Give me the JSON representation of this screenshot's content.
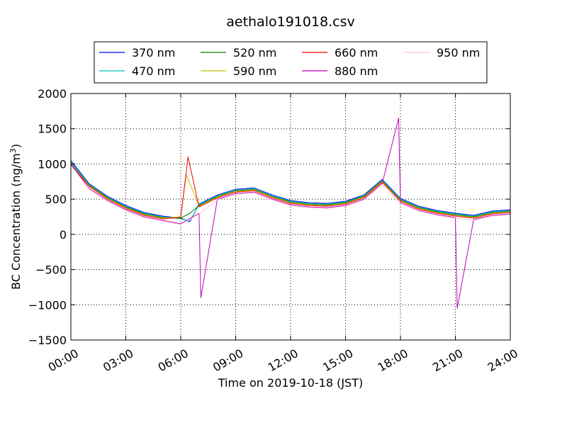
{
  "chart_data": {
    "type": "line",
    "title": "aethalo191018.csv",
    "xlabel": "Time on 2019-10-18 (JST)",
    "ylabel": "BC Concentration (ng/m³)",
    "ylabel_main": "BC Concentration (ng/m",
    "ylabel_sup": "3",
    "ylabel_end": ")",
    "xlim": [
      "00:00",
      "24:00"
    ],
    "ylim": [
      -1500,
      2000
    ],
    "grid": true,
    "legend_position": "top-center",
    "x_ticks": [
      "00:00",
      "03:00",
      "06:00",
      "09:00",
      "12:00",
      "15:00",
      "18:00",
      "21:00",
      "24:00"
    ],
    "y_ticks": [
      -1500,
      -1000,
      -500,
      0,
      500,
      1000,
      1500,
      2000
    ],
    "y_tick_labels": [
      "−1500",
      "−1000",
      "−500",
      "0",
      "500",
      "1000",
      "1500",
      "2000"
    ],
    "series": [
      {
        "name": "370 nm",
        "color": "#0000ff",
        "values": [
          [
            0,
            1050
          ],
          [
            1,
            720
          ],
          [
            2,
            540
          ],
          [
            3,
            410
          ],
          [
            4,
            310
          ],
          [
            5,
            260
          ],
          [
            6,
            230
          ],
          [
            6.5,
            180
          ],
          [
            7,
            430
          ],
          [
            8,
            560
          ],
          [
            9,
            640
          ],
          [
            10,
            660
          ],
          [
            11,
            560
          ],
          [
            12,
            480
          ],
          [
            13,
            450
          ],
          [
            14,
            440
          ],
          [
            15,
            470
          ],
          [
            16,
            560
          ],
          [
            17,
            780
          ],
          [
            18,
            510
          ],
          [
            19,
            400
          ],
          [
            20,
            340
          ],
          [
            21,
            300
          ],
          [
            22,
            270
          ],
          [
            23,
            330
          ],
          [
            24,
            350
          ]
        ]
      },
      {
        "name": "470 nm",
        "color": "#00bfbf",
        "values": [
          [
            0,
            1030
          ],
          [
            1,
            710
          ],
          [
            2,
            530
          ],
          [
            3,
            400
          ],
          [
            4,
            300
          ],
          [
            5,
            250
          ],
          [
            6,
            220
          ],
          [
            6.5,
            190
          ],
          [
            7,
            420
          ],
          [
            8,
            550
          ],
          [
            9,
            630
          ],
          [
            10,
            650
          ],
          [
            11,
            550
          ],
          [
            12,
            470
          ],
          [
            13,
            440
          ],
          [
            14,
            430
          ],
          [
            15,
            460
          ],
          [
            16,
            550
          ],
          [
            17,
            770
          ],
          [
            18,
            500
          ],
          [
            19,
            390
          ],
          [
            20,
            330
          ],
          [
            21,
            290
          ],
          [
            22,
            260
          ],
          [
            23,
            320
          ],
          [
            24,
            340
          ]
        ]
      },
      {
        "name": "520 nm",
        "color": "#008000",
        "values": [
          [
            0,
            1010
          ],
          [
            1,
            700
          ],
          [
            2,
            520
          ],
          [
            3,
            390
          ],
          [
            4,
            290
          ],
          [
            5,
            240
          ],
          [
            6,
            230
          ],
          [
            6.5,
            300
          ],
          [
            7,
            410
          ],
          [
            8,
            540
          ],
          [
            9,
            620
          ],
          [
            10,
            640
          ],
          [
            11,
            540
          ],
          [
            12,
            460
          ],
          [
            13,
            430
          ],
          [
            14,
            420
          ],
          [
            15,
            450
          ],
          [
            16,
            540
          ],
          [
            17,
            760
          ],
          [
            18,
            490
          ],
          [
            19,
            380
          ],
          [
            20,
            320
          ],
          [
            21,
            280
          ],
          [
            22,
            250
          ],
          [
            23,
            310
          ],
          [
            24,
            330
          ]
        ]
      },
      {
        "name": "590 nm",
        "color": "#bfbf00",
        "values": [
          [
            0,
            1000
          ],
          [
            1,
            690
          ],
          [
            2,
            510
          ],
          [
            3,
            380
          ],
          [
            4,
            280
          ],
          [
            5,
            230
          ],
          [
            6,
            250
          ],
          [
            6.3,
            850
          ],
          [
            7,
            400
          ],
          [
            8,
            530
          ],
          [
            9,
            610
          ],
          [
            10,
            630
          ],
          [
            11,
            530
          ],
          [
            12,
            450
          ],
          [
            13,
            420
          ],
          [
            14,
            410
          ],
          [
            15,
            440
          ],
          [
            16,
            530
          ],
          [
            17,
            750
          ],
          [
            18,
            480
          ],
          [
            19,
            370
          ],
          [
            20,
            310
          ],
          [
            21,
            270
          ],
          [
            22,
            240
          ],
          [
            23,
            300
          ],
          [
            24,
            320
          ]
        ]
      },
      {
        "name": "660 nm",
        "color": "#ff0000",
        "values": [
          [
            0,
            990
          ],
          [
            1,
            680
          ],
          [
            2,
            500
          ],
          [
            3,
            370
          ],
          [
            4,
            270
          ],
          [
            5,
            220
          ],
          [
            6,
            240
          ],
          [
            6.4,
            1100
          ],
          [
            7,
            390
          ],
          [
            8,
            520
          ],
          [
            9,
            600
          ],
          [
            10,
            620
          ],
          [
            11,
            520
          ],
          [
            12,
            440
          ],
          [
            13,
            410
          ],
          [
            14,
            400
          ],
          [
            15,
            430
          ],
          [
            16,
            520
          ],
          [
            17,
            740
          ],
          [
            18,
            470
          ],
          [
            19,
            360
          ],
          [
            20,
            300
          ],
          [
            21,
            260
          ],
          [
            22,
            230
          ],
          [
            23,
            290
          ],
          [
            24,
            310
          ]
        ]
      },
      {
        "name": "880 nm",
        "color": "#bf00bf",
        "values": [
          [
            0,
            1000
          ],
          [
            1,
            650
          ],
          [
            2,
            480
          ],
          [
            3,
            350
          ],
          [
            4,
            250
          ],
          [
            5,
            200
          ],
          [
            6,
            150
          ],
          [
            7,
            300
          ],
          [
            7.1,
            -900
          ],
          [
            8,
            500
          ],
          [
            9,
            580
          ],
          [
            10,
            600
          ],
          [
            11,
            500
          ],
          [
            12,
            420
          ],
          [
            13,
            390
          ],
          [
            14,
            380
          ],
          [
            15,
            410
          ],
          [
            16,
            500
          ],
          [
            17,
            720
          ],
          [
            17.9,
            1650
          ],
          [
            18,
            450
          ],
          [
            19,
            340
          ],
          [
            20,
            280
          ],
          [
            21,
            240
          ],
          [
            21.1,
            -1050
          ],
          [
            22,
            210
          ],
          [
            23,
            270
          ],
          [
            24,
            290
          ]
        ]
      },
      {
        "name": "950 nm",
        "color": "#ffc0cb",
        "values": [
          [
            0,
            980
          ],
          [
            1,
            640
          ],
          [
            2,
            470
          ],
          [
            3,
            340
          ],
          [
            4,
            240
          ],
          [
            5,
            190
          ],
          [
            6,
            140
          ],
          [
            7,
            290
          ],
          [
            8,
            490
          ],
          [
            9,
            570
          ],
          [
            10,
            590
          ],
          [
            11,
            490
          ],
          [
            12,
            410
          ],
          [
            13,
            380
          ],
          [
            14,
            370
          ],
          [
            15,
            400
          ],
          [
            16,
            490
          ],
          [
            17,
            710
          ],
          [
            18,
            440
          ],
          [
            19,
            330
          ],
          [
            20,
            270
          ],
          [
            21,
            230
          ],
          [
            22,
            200
          ],
          [
            23,
            260
          ],
          [
            24,
            280
          ]
        ]
      }
    ]
  }
}
